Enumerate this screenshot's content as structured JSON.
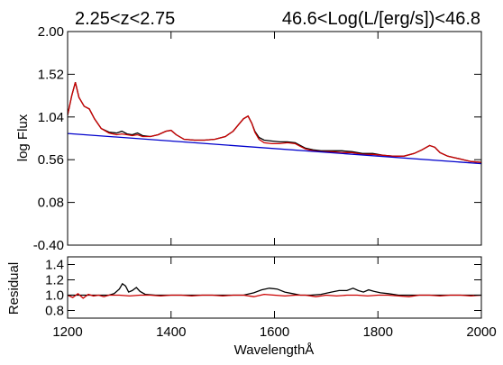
{
  "chart_data": [
    {
      "type": "line",
      "panel": "spectrum",
      "title_left": "2.25<z<2.75",
      "title_right": "46.6<Log(L/[erg/s])<46.8",
      "xlabel": "",
      "ylabel": "log Flux",
      "xlim": [
        1200,
        2000
      ],
      "ylim": [
        -0.4,
        2.0
      ],
      "yticks": [
        "2.00",
        "1.52",
        "1.04",
        "0.56",
        "0.08",
        "-0.40"
      ],
      "ytick_values": [
        2.0,
        1.52,
        1.04,
        0.56,
        0.08,
        -0.4
      ],
      "grid": false,
      "series": [
        {
          "color": "#000000",
          "x": [
            1200,
            1208,
            1215,
            1222,
            1232,
            1242,
            1252,
            1265,
            1280,
            1295,
            1305,
            1315,
            1325,
            1335,
            1345,
            1360,
            1375,
            1390,
            1400,
            1410,
            1425,
            1445,
            1465,
            1485,
            1505,
            1520,
            1530,
            1540,
            1549,
            1556,
            1562,
            1570,
            1580,
            1595,
            1610,
            1625,
            1640,
            1650,
            1660,
            1675,
            1690,
            1710,
            1730,
            1750,
            1770,
            1790,
            1810,
            1830,
            1850,
            1870,
            1885,
            1900,
            1910,
            1920,
            1935,
            1950,
            1965,
            1980,
            2000
          ],
          "y": [
            1.06,
            1.28,
            1.43,
            1.26,
            1.16,
            1.13,
            1.02,
            0.91,
            0.87,
            0.86,
            0.88,
            0.85,
            0.84,
            0.86,
            0.83,
            0.82,
            0.84,
            0.88,
            0.89,
            0.84,
            0.79,
            0.78,
            0.78,
            0.79,
            0.82,
            0.88,
            0.95,
            1.02,
            1.05,
            0.97,
            0.88,
            0.81,
            0.78,
            0.77,
            0.76,
            0.76,
            0.75,
            0.72,
            0.69,
            0.67,
            0.66,
            0.66,
            0.66,
            0.65,
            0.63,
            0.63,
            0.61,
            0.6,
            0.6,
            0.63,
            0.67,
            0.72,
            0.7,
            0.64,
            0.6,
            0.58,
            0.56,
            0.54,
            0.53
          ]
        },
        {
          "color": "#cc0000",
          "x": [
            1200,
            1208,
            1215,
            1222,
            1232,
            1242,
            1252,
            1265,
            1280,
            1295,
            1305,
            1315,
            1325,
            1335,
            1345,
            1360,
            1375,
            1390,
            1400,
            1410,
            1425,
            1445,
            1465,
            1485,
            1505,
            1520,
            1530,
            1540,
            1549,
            1556,
            1562,
            1570,
            1580,
            1595,
            1610,
            1625,
            1640,
            1650,
            1660,
            1675,
            1690,
            1710,
            1730,
            1750,
            1770,
            1790,
            1810,
            1830,
            1850,
            1870,
            1885,
            1900,
            1910,
            1920,
            1935,
            1950,
            1965,
            1980,
            2000
          ],
          "y": [
            1.06,
            1.28,
            1.43,
            1.26,
            1.16,
            1.13,
            1.02,
            0.91,
            0.86,
            0.84,
            0.85,
            0.84,
            0.83,
            0.84,
            0.82,
            0.82,
            0.84,
            0.88,
            0.89,
            0.84,
            0.79,
            0.78,
            0.78,
            0.79,
            0.82,
            0.88,
            0.95,
            1.02,
            1.05,
            0.97,
            0.87,
            0.79,
            0.75,
            0.74,
            0.74,
            0.75,
            0.74,
            0.71,
            0.68,
            0.66,
            0.65,
            0.65,
            0.64,
            0.64,
            0.62,
            0.62,
            0.61,
            0.6,
            0.6,
            0.63,
            0.67,
            0.72,
            0.7,
            0.64,
            0.6,
            0.58,
            0.56,
            0.54,
            0.53
          ]
        },
        {
          "color": "#0000cc",
          "x": [
            1200,
            2000
          ],
          "y": [
            0.855,
            0.515
          ]
        }
      ]
    },
    {
      "type": "line",
      "panel": "residual",
      "xlabel": "WavelengthÅ",
      "ylabel": "Residual",
      "xlim": [
        1200,
        2000
      ],
      "ylim": [
        0.7,
        1.5
      ],
      "xticks": [
        1200,
        1400,
        1600,
        1800,
        2000
      ],
      "yticks": [
        "1.4",
        "1.2",
        "1.0",
        "0.8"
      ],
      "ytick_values": [
        1.4,
        1.2,
        1.0,
        0.8
      ],
      "grid": false,
      "series": [
        {
          "color": "#000000",
          "x": [
            1200,
            1220,
            1240,
            1260,
            1280,
            1290,
            1300,
            1306,
            1312,
            1318,
            1325,
            1333,
            1340,
            1350,
            1370,
            1400,
            1450,
            1500,
            1540,
            1560,
            1575,
            1590,
            1605,
            1620,
            1635,
            1650,
            1670,
            1690,
            1710,
            1725,
            1740,
            1752,
            1762,
            1772,
            1782,
            1792,
            1805,
            1820,
            1840,
            1870,
            1900,
            1950,
            2000
          ],
          "y": [
            1.0,
            1.0,
            1.0,
            1.0,
            1.0,
            1.02,
            1.08,
            1.15,
            1.12,
            1.04,
            1.06,
            1.1,
            1.05,
            1.01,
            1.0,
            1.0,
            1.0,
            1.0,
            1.0,
            1.03,
            1.07,
            1.09,
            1.08,
            1.04,
            1.02,
            1.0,
            1.0,
            1.01,
            1.04,
            1.06,
            1.06,
            1.09,
            1.06,
            1.04,
            1.07,
            1.05,
            1.03,
            1.02,
            1.0,
            1.0,
            1.0,
            1.0,
            1.0
          ]
        },
        {
          "color": "#cc0000",
          "x": [
            1200,
            1210,
            1220,
            1230,
            1240,
            1250,
            1260,
            1270,
            1280,
            1300,
            1320,
            1340,
            1360,
            1380,
            1400,
            1420,
            1440,
            1460,
            1480,
            1500,
            1520,
            1540,
            1560,
            1580,
            1600,
            1620,
            1640,
            1660,
            1680,
            1700,
            1720,
            1740,
            1760,
            1780,
            1800,
            1820,
            1840,
            1860,
            1880,
            1900,
            1920,
            1940,
            1960,
            1980,
            2000
          ],
          "y": [
            1.0,
            0.97,
            1.02,
            0.96,
            1.01,
            0.99,
            1.0,
            0.98,
            1.0,
            1.0,
            0.99,
            1.0,
            1.0,
            0.99,
            1.0,
            1.0,
            0.99,
            1.0,
            1.0,
            0.99,
            1.0,
            1.0,
            0.98,
            1.01,
            1.0,
            0.99,
            1.0,
            1.0,
            0.98,
            1.0,
            0.99,
            1.0,
            1.0,
            0.99,
            1.0,
            1.0,
            0.99,
            0.98,
            1.0,
            1.0,
            0.99,
            1.0,
            1.0,
            0.99,
            1.0
          ]
        }
      ]
    }
  ]
}
